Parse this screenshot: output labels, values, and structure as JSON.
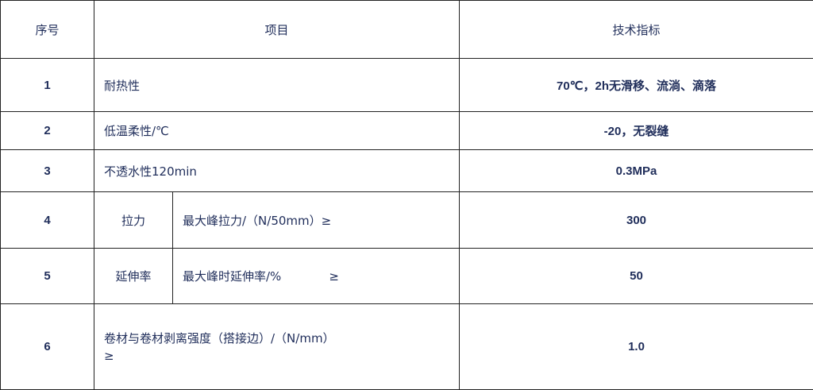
{
  "header": {
    "col_no": "序号",
    "col_item": "项目",
    "col_spec": "技术指标"
  },
  "rows": [
    {
      "no": "1",
      "item": "耐热性",
      "spec": "70℃，2h无滑移、流淌、滴落"
    },
    {
      "no": "2",
      "item": "低温柔性/℃",
      "spec": "-20，无裂缝"
    },
    {
      "no": "3",
      "item": "不透水性120min",
      "spec": "0.3MPa"
    },
    {
      "no": "4",
      "group": "拉力",
      "item": "最大峰拉力/（N/50mm）≥",
      "spec": "300"
    },
    {
      "no": "5",
      "group": "延伸率",
      "item": "最大峰时延伸率/%",
      "suffix": "≥",
      "spec": "50"
    },
    {
      "no": "6",
      "item": "卷材与卷材剥离强度（搭接边）/（N/mm）",
      "item_line2": "≥",
      "spec": "1.0"
    }
  ],
  "colors": {
    "text": "#1f2d5a",
    "border": "#222222"
  }
}
